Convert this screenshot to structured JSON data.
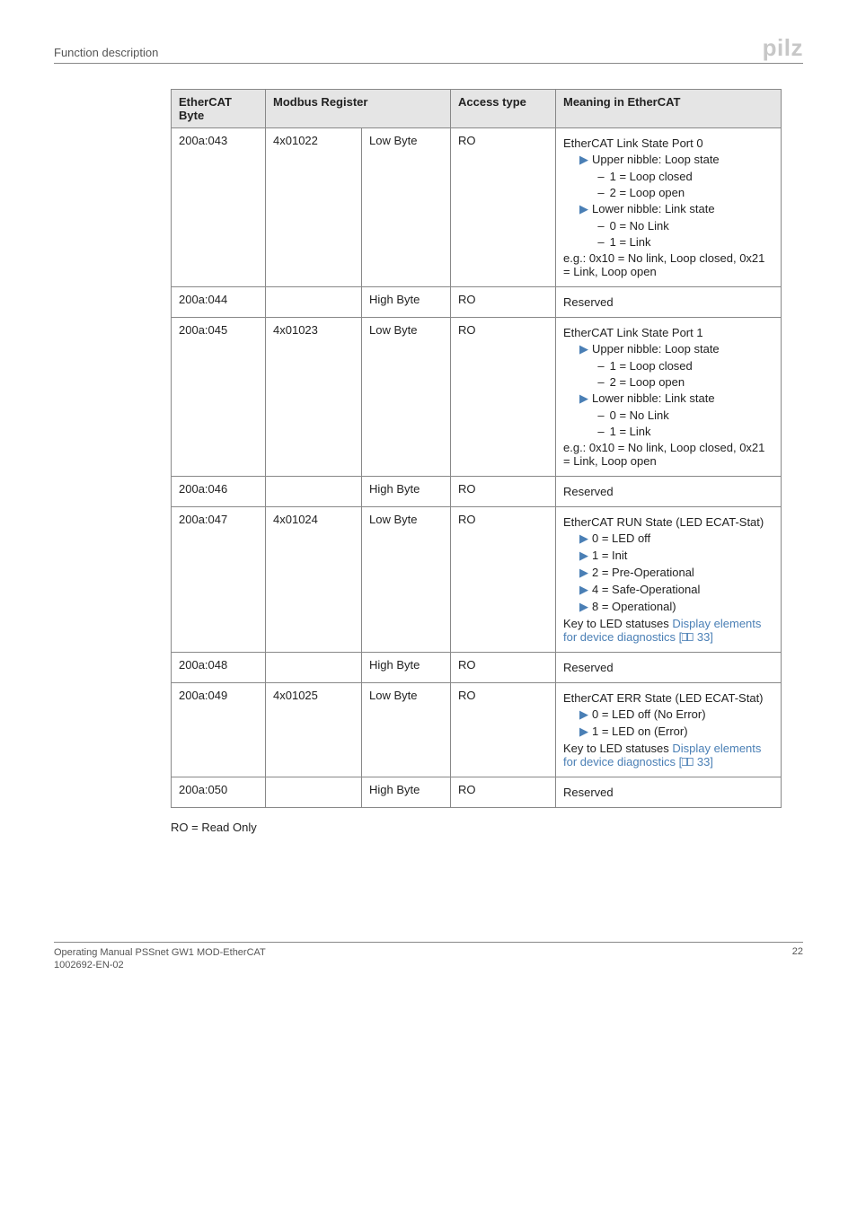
{
  "header": {
    "left": "Function description",
    "logo": "pilz"
  },
  "table": {
    "head": {
      "byte": "EtherCAT Byte",
      "modbus": "Modbus Register",
      "access": "Access type",
      "meaning": "Meaning in EtherCAT"
    },
    "rows": [
      {
        "byte": "200a:043",
        "reg": "4x01022",
        "hl": "Low Byte",
        "access": "RO",
        "cells": [
          {
            "t": "plain",
            "v": "EtherCAT Link State Port 0"
          },
          {
            "t": "b1",
            "v": "Upper nibble: Loop state"
          },
          {
            "t": "b2",
            "v": "1 = Loop closed"
          },
          {
            "t": "b2",
            "v": "2 = Loop open"
          },
          {
            "t": "b1",
            "v": "Lower nibble: Link state"
          },
          {
            "t": "b2",
            "v": "0 = No Link"
          },
          {
            "t": "b2",
            "v": "1 = Link"
          },
          {
            "t": "plain",
            "v": "e.g.: 0x10 = No link, Loop closed, 0x21 = Link, Loop open"
          }
        ]
      },
      {
        "byte": "200a:044",
        "reg": "",
        "hl": "High Byte",
        "access": "RO",
        "cells": [
          {
            "t": "plain",
            "v": "Reserved"
          }
        ]
      },
      {
        "byte": "200a:045",
        "reg": "4x01023",
        "hl": "Low Byte",
        "access": "RO",
        "cells": [
          {
            "t": "plain",
            "v": "EtherCAT Link State Port 1"
          },
          {
            "t": "b1",
            "v": "Upper nibble: Loop state"
          },
          {
            "t": "b2",
            "v": "1 = Loop closed"
          },
          {
            "t": "b2",
            "v": "2 = Loop open"
          },
          {
            "t": "b1",
            "v": "Lower nibble: Link state"
          },
          {
            "t": "b2",
            "v": "0 = No Link"
          },
          {
            "t": "b2",
            "v": "1 = Link"
          },
          {
            "t": "plain",
            "v": "e.g.: 0x10 = No link, Loop closed, 0x21 = Link, Loop open"
          }
        ]
      },
      {
        "byte": "200a:046",
        "reg": "",
        "hl": "High Byte",
        "access": "RO",
        "cells": [
          {
            "t": "plain",
            "v": "Reserved"
          }
        ]
      },
      {
        "byte": "200a:047",
        "reg": "4x01024",
        "hl": "Low Byte",
        "access": "RO",
        "cells": [
          {
            "t": "plain",
            "v": "EtherCAT RUN State (LED ECAT-Stat)"
          },
          {
            "t": "b1",
            "v": "0 = LED off"
          },
          {
            "t": "b1",
            "v": "1 = Init"
          },
          {
            "t": "b1",
            "v": "2 = Pre-Operational"
          },
          {
            "t": "b1",
            "v": "4 = Safe-Operational"
          },
          {
            "t": "b1",
            "v": "8 = Operational)"
          },
          {
            "t": "link",
            "pre": "Key to LED statuses ",
            "link": "Display elements for device diagnostics",
            "icon": true,
            "post": " 33]"
          }
        ]
      },
      {
        "byte": "200a:048",
        "reg": "",
        "hl": "High Byte",
        "access": "RO",
        "cells": [
          {
            "t": "plain",
            "v": "Reserved"
          }
        ]
      },
      {
        "byte": "200a:049",
        "reg": "4x01025",
        "hl": "Low Byte",
        "access": "RO",
        "cells": [
          {
            "t": "plain",
            "v": "EtherCAT ERR State (LED ECAT-Stat)"
          },
          {
            "t": "b1",
            "v": "0 = LED off (No Error)"
          },
          {
            "t": "b1",
            "v": "1 = LED on (Error)"
          },
          {
            "t": "link",
            "pre": "Key to LED statuses ",
            "link": "Display elements for device diagnostics",
            "icon": true,
            "post": " 33]"
          }
        ]
      },
      {
        "byte": "200a:050",
        "reg": "",
        "hl": "High Byte",
        "access": "RO",
        "cells": [
          {
            "t": "plain",
            "v": "Reserved"
          }
        ]
      }
    ]
  },
  "note": "RO = Read Only",
  "footer": {
    "line1": "Operating Manual PSSnet GW1 MOD-EtherCAT",
    "line2": "1002692-EN-02",
    "page": "22"
  }
}
